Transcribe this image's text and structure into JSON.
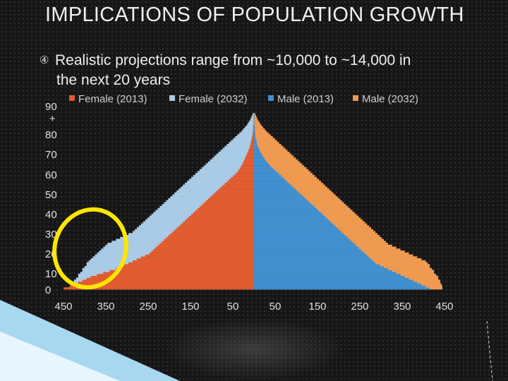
{
  "slide": {
    "title": "IMPLICATIONS OF POPULATION GROWTH",
    "bullet_icon": "circled-arrow-icon",
    "bullet_line1": "Realistic projections range from ~10,000 to ~14,000 in",
    "bullet_line2": "the next 20 years"
  },
  "colors": {
    "female_2013": "#e2582a",
    "female_2032": "#a9cbe6",
    "male_2013": "#3b8fd3",
    "male_2032": "#ef9a50",
    "highlight": "#ffe600"
  },
  "chart_data": {
    "type": "bar",
    "orientation": "horizontal",
    "series": [
      {
        "name": "Female (2013)",
        "color": "#e2582a"
      },
      {
        "name": "Female (2032)",
        "color": "#a9cbe6"
      },
      {
        "name": "Male (2013)",
        "color": "#3b8fd3"
      },
      {
        "name": "Male (2032)",
        "color": "#ef9a50"
      }
    ],
    "legend": "top",
    "grid": false,
    "x_tick_labels": [
      "450",
      "350",
      "250",
      "150",
      "50",
      "50",
      "150",
      "250",
      "350",
      "450"
    ],
    "xlim": [
      -450,
      450
    ],
    "y_tick_labels": [
      "90 +",
      "80",
      "70",
      "60",
      "50",
      "40",
      "30",
      "20",
      "10",
      "0"
    ],
    "ylim": [
      0,
      90
    ],
    "female_2013": [
      455,
      440,
      430,
      420,
      410,
      400,
      390,
      375,
      360,
      345,
      330,
      320,
      310,
      300,
      290,
      280,
      270,
      260,
      250,
      245,
      240,
      235,
      230,
      225,
      220,
      215,
      210,
      205,
      200,
      195,
      190,
      185,
      180,
      175,
      170,
      165,
      160,
      155,
      150,
      145,
      140,
      135,
      130,
      125,
      120,
      115,
      110,
      105,
      100,
      95,
      90,
      85,
      80,
      75,
      70,
      65,
      60,
      55,
      50,
      45,
      40,
      37,
      34,
      31,
      28,
      26,
      24,
      22,
      20,
      18,
      16,
      14,
      12,
      10,
      9,
      8,
      7,
      6,
      5,
      4,
      3,
      3,
      2,
      2,
      2,
      1,
      1,
      1,
      1,
      1,
      1
    ],
    "female_2032": [
      445,
      440,
      435,
      430,
      430,
      425,
      420,
      420,
      415,
      410,
      410,
      405,
      400,
      400,
      395,
      390,
      385,
      380,
      375,
      370,
      365,
      360,
      355,
      350,
      340,
      330,
      320,
      310,
      300,
      290,
      285,
      280,
      275,
      270,
      265,
      260,
      255,
      250,
      245,
      240,
      235,
      230,
      225,
      220,
      215,
      210,
      205,
      200,
      195,
      190,
      185,
      180,
      175,
      170,
      165,
      160,
      155,
      150,
      145,
      140,
      135,
      130,
      125,
      120,
      115,
      110,
      105,
      100,
      95,
      90,
      85,
      80,
      75,
      70,
      65,
      60,
      55,
      50,
      45,
      40,
      35,
      30,
      26,
      22,
      18,
      15,
      12,
      9,
      7,
      5,
      3
    ],
    "male_2013": [
      420,
      410,
      400,
      390,
      380,
      370,
      360,
      350,
      340,
      330,
      320,
      310,
      300,
      290,
      285,
      280,
      275,
      270,
      265,
      260,
      255,
      250,
      245,
      240,
      235,
      230,
      225,
      220,
      215,
      210,
      205,
      200,
      195,
      190,
      185,
      180,
      175,
      170,
      165,
      160,
      155,
      150,
      145,
      140,
      135,
      130,
      125,
      120,
      115,
      110,
      105,
      100,
      95,
      90,
      85,
      80,
      75,
      70,
      65,
      60,
      55,
      50,
      45,
      40,
      36,
      32,
      28,
      25,
      22,
      19,
      16,
      14,
      12,
      10,
      8,
      7,
      6,
      5,
      4,
      3,
      3,
      2,
      2,
      2,
      1,
      1,
      1,
      1,
      1,
      1,
      1
    ],
    "male_2032": [
      450,
      450,
      448,
      445,
      445,
      440,
      440,
      435,
      430,
      430,
      425,
      420,
      420,
      415,
      410,
      400,
      390,
      380,
      370,
      360,
      350,
      340,
      330,
      320,
      315,
      310,
      305,
      300,
      295,
      290,
      285,
      280,
      275,
      270,
      265,
      260,
      255,
      250,
      245,
      240,
      235,
      230,
      225,
      220,
      215,
      210,
      205,
      200,
      195,
      190,
      185,
      180,
      175,
      170,
      165,
      160,
      155,
      150,
      145,
      140,
      135,
      130,
      125,
      120,
      115,
      110,
      105,
      100,
      95,
      90,
      85,
      80,
      75,
      70,
      65,
      60,
      55,
      50,
      45,
      40,
      35,
      30,
      26,
      22,
      18,
      15,
      12,
      9,
      7,
      5,
      3
    ]
  }
}
